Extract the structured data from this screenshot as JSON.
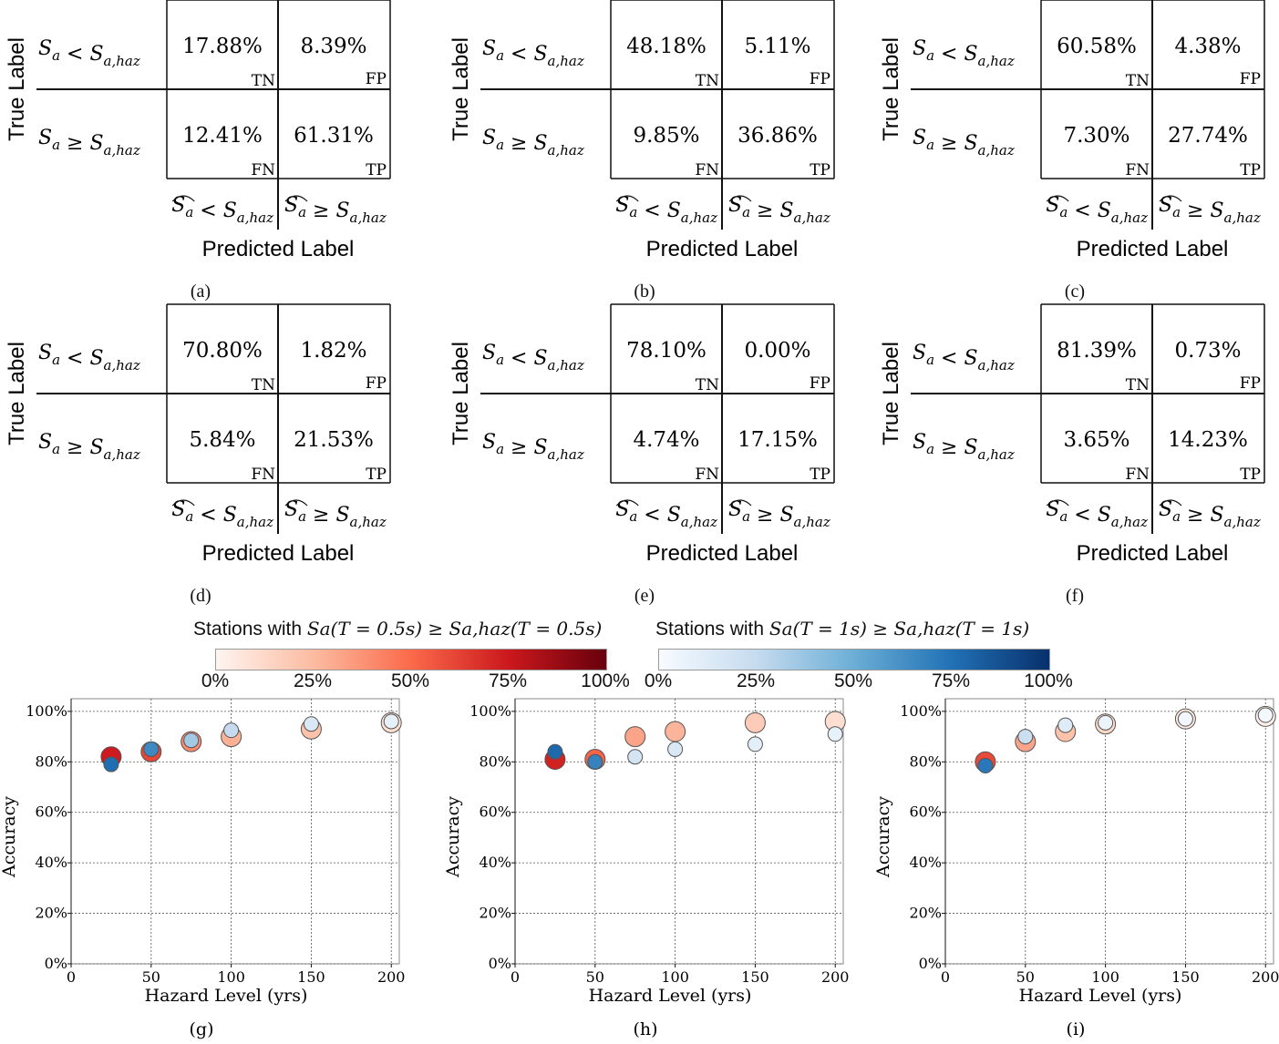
{
  "confusion_matrices": [
    {
      "caption": "(a)",
      "tn": "17.88%",
      "fp": "8.39%",
      "fn": "12.41%",
      "tp": "61.31%"
    },
    {
      "caption": "(b)",
      "tn": "48.18%",
      "fp": "5.11%",
      "fn": "9.85%",
      "tp": "36.86%"
    },
    {
      "caption": "(c)",
      "tn": "60.58%",
      "fp": "4.38%",
      "fn": "7.30%",
      "tp": "27.74%"
    },
    {
      "caption": "(d)",
      "tn": "70.80%",
      "fp": "1.82%",
      "fn": "5.84%",
      "tp": "21.53%"
    },
    {
      "caption": "(e)",
      "tn": "78.10%",
      "fp": "0.00%",
      "fn": "4.74%",
      "tp": "17.15%"
    },
    {
      "caption": "(f)",
      "tn": "81.39%",
      "fp": "0.73%",
      "fn": "3.65%",
      "tp": "14.23%"
    }
  ],
  "cm_labels": {
    "ylabel": "True Label",
    "xlabel": "Predicted Label",
    "row_top": "Sa < Sa,haz",
    "row_bottom": "Sa ≥ Sa,haz",
    "col_left": "Ŝa < Sa,haz",
    "col_right": "Ŝa ≥ Sa,haz",
    "tn_tag": "TN",
    "fp_tag": "FP",
    "fn_tag": "FN",
    "tp_tag": "TP"
  },
  "colorbars": [
    {
      "title_prefix": "Stations with ",
      "title_math": "Sa(T = 0.5s) ≥ Sa,haz(T = 0.5s)",
      "ticks": [
        "0%",
        "25%",
        "50%",
        "75%",
        "100%"
      ],
      "colors": [
        "#fff5f0",
        "#fcbba1",
        "#fb6a4a",
        "#cb181d",
        "#67000d"
      ]
    },
    {
      "title_prefix": "Stations with ",
      "title_math": "Sa(T = 1s) ≥ Sa,haz(T = 1s)",
      "ticks": [
        "0%",
        "25%",
        "50%",
        "75%",
        "100%"
      ],
      "colors": [
        "#f7fbff",
        "#c6dbef",
        "#6baed6",
        "#2171b5",
        "#08306b"
      ]
    }
  ],
  "chart_data": [
    {
      "type": "scatter",
      "caption": "(g)",
      "xlabel": "Hazard Level (yrs)",
      "ylabel": "Accuracy",
      "xlim": [
        0,
        205
      ],
      "ylim": [
        0,
        1.05
      ],
      "xticks": [
        "0",
        "50",
        "100",
        "150",
        "200"
      ],
      "yticks": [
        "0%",
        "20%",
        "40%",
        "60%",
        "80%",
        "100%"
      ],
      "grid": true,
      "series": [
        {
          "colormap": "Reds",
          "marker_size": "large",
          "points": [
            {
              "x": 25,
              "y": 0.82,
              "frac": 0.74
            },
            {
              "x": 50,
              "y": 0.84,
              "frac": 0.61
            },
            {
              "x": 75,
              "y": 0.88,
              "frac": 0.4
            },
            {
              "x": 100,
              "y": 0.9,
              "frac": 0.28
            },
            {
              "x": 150,
              "y": 0.93,
              "frac": 0.22
            },
            {
              "x": 200,
              "y": 0.955,
              "frac": 0.1
            }
          ]
        },
        {
          "colormap": "Blues",
          "marker_size": "small",
          "points": [
            {
              "x": 25,
              "y": 0.79,
              "frac": 0.76
            },
            {
              "x": 50,
              "y": 0.85,
              "frac": 0.65
            },
            {
              "x": 75,
              "y": 0.885,
              "frac": 0.35
            },
            {
              "x": 100,
              "y": 0.925,
              "frac": 0.25
            },
            {
              "x": 150,
              "y": 0.95,
              "frac": 0.15
            },
            {
              "x": 200,
              "y": 0.96,
              "frac": 0.08
            }
          ]
        }
      ]
    },
    {
      "type": "scatter",
      "caption": "(h)",
      "xlabel": "Hazard Level (yrs)",
      "ylabel": "Accuracy",
      "xlim": [
        0,
        205
      ],
      "ylim": [
        0,
        1.05
      ],
      "xticks": [
        "0",
        "50",
        "100",
        "150",
        "200"
      ],
      "yticks": [
        "0%",
        "20%",
        "40%",
        "60%",
        "80%",
        "100%"
      ],
      "grid": true,
      "series": [
        {
          "colormap": "Reds",
          "marker_size": "large",
          "points": [
            {
              "x": 25,
              "y": 0.81,
              "frac": 0.72
            },
            {
              "x": 50,
              "y": 0.81,
              "frac": 0.52
            },
            {
              "x": 75,
              "y": 0.9,
              "frac": 0.32
            },
            {
              "x": 100,
              "y": 0.92,
              "frac": 0.27
            },
            {
              "x": 150,
              "y": 0.955,
              "frac": 0.18
            },
            {
              "x": 200,
              "y": 0.96,
              "frac": 0.1
            }
          ]
        },
        {
          "colormap": "Blues",
          "marker_size": "small",
          "points": [
            {
              "x": 25,
              "y": 0.84,
              "frac": 0.78
            },
            {
              "x": 50,
              "y": 0.8,
              "frac": 0.68
            },
            {
              "x": 75,
              "y": 0.82,
              "frac": 0.18
            },
            {
              "x": 100,
              "y": 0.85,
              "frac": 0.15
            },
            {
              "x": 150,
              "y": 0.87,
              "frac": 0.1
            },
            {
              "x": 200,
              "y": 0.91,
              "frac": 0.08
            }
          ]
        }
      ]
    },
    {
      "type": "scatter",
      "caption": "(i)",
      "xlabel": "Hazard Level (yrs)",
      "ylabel": "Accuracy",
      "xlim": [
        0,
        205
      ],
      "ylim": [
        0,
        1.05
      ],
      "xticks": [
        "0",
        "50",
        "100",
        "150",
        "200"
      ],
      "yticks": [
        "0%",
        "20%",
        "40%",
        "60%",
        "80%",
        "100%"
      ],
      "grid": true,
      "series": [
        {
          "colormap": "Reds",
          "marker_size": "large",
          "points": [
            {
              "x": 25,
              "y": 0.8,
              "frac": 0.6
            },
            {
              "x": 50,
              "y": 0.88,
              "frac": 0.32
            },
            {
              "x": 75,
              "y": 0.92,
              "frac": 0.22
            },
            {
              "x": 100,
              "y": 0.95,
              "frac": 0.12
            },
            {
              "x": 150,
              "y": 0.97,
              "frac": 0.05
            },
            {
              "x": 200,
              "y": 0.98,
              "frac": 0.02
            }
          ]
        },
        {
          "colormap": "Blues",
          "marker_size": "small",
          "points": [
            {
              "x": 25,
              "y": 0.785,
              "frac": 0.72
            },
            {
              "x": 50,
              "y": 0.9,
              "frac": 0.22
            },
            {
              "x": 75,
              "y": 0.945,
              "frac": 0.12
            },
            {
              "x": 100,
              "y": 0.955,
              "frac": 0.06
            },
            {
              "x": 150,
              "y": 0.97,
              "frac": 0.03
            },
            {
              "x": 200,
              "y": 0.985,
              "frac": 0.02
            }
          ]
        }
      ]
    }
  ]
}
